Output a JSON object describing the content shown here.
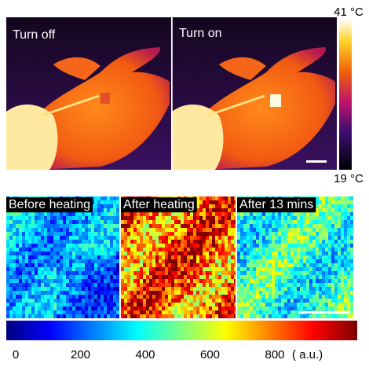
{
  "thermal": {
    "panels": [
      "Turn off",
      "Turn on"
    ],
    "max_label": "41 °C",
    "min_label": "19 °C"
  },
  "maps": {
    "panels": [
      "Before heating",
      "After heating",
      "After 13 mins"
    ],
    "colorbar": {
      "ticks": [
        0,
        200,
        400,
        600,
        800
      ],
      "unit": "( a.u.)"
    }
  }
}
